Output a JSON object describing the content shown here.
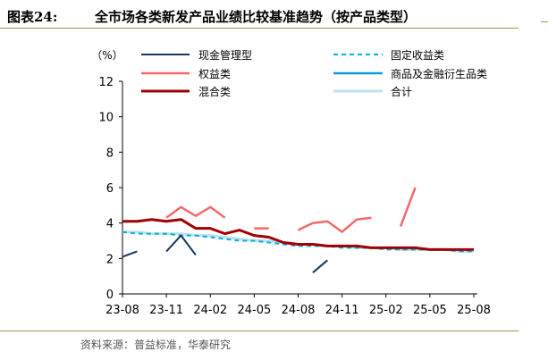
{
  "figure": {
    "number": "图表24:",
    "title": "全市场各类新发产品业绩比较基准趋势（按产品类型）",
    "source": "资料来源：普益标准，华泰研究"
  },
  "chart_data": {
    "type": "line",
    "ylabel": "（%）",
    "ylim": [
      0,
      12
    ],
    "yticks": [
      "0",
      "2",
      "4",
      "6",
      "8",
      "10",
      "12"
    ],
    "x_labels": [
      "23-08",
      "23-11",
      "24-02",
      "24-05",
      "24-08",
      "24-11",
      "25-02",
      "25-05",
      "25-08"
    ],
    "x": [
      "23-08",
      "23-09",
      "23-10",
      "23-11",
      "23-12",
      "24-01",
      "24-02",
      "24-03",
      "24-04",
      "24-05",
      "24-06",
      "24-07",
      "24-08",
      "24-09",
      "24-10",
      "24-11",
      "24-12",
      "25-01",
      "25-02",
      "25-03",
      "25-04",
      "25-05",
      "25-06",
      "25-07",
      "25-08"
    ],
    "grid": false,
    "legend_position": "top",
    "series": [
      {
        "name": "现金管理型",
        "color": "#17375e",
        "dash": "solid",
        "width": 2,
        "values": [
          2.1,
          2.4,
          null,
          2.4,
          3.3,
          2.2,
          null,
          null,
          null,
          null,
          null,
          null,
          null,
          1.2,
          1.9,
          null,
          null,
          null,
          null,
          null,
          null,
          null,
          null,
          null,
          null
        ]
      },
      {
        "name": "固定收益类",
        "color": "#00b0d8",
        "dash": "dashed",
        "width": 2,
        "values": [
          3.5,
          3.4,
          3.4,
          3.4,
          3.3,
          3.3,
          3.2,
          3.1,
          3.0,
          3.0,
          2.9,
          2.8,
          2.7,
          2.7,
          2.7,
          2.6,
          2.6,
          2.6,
          2.5,
          2.5,
          2.5,
          2.5,
          2.5,
          2.4,
          2.4
        ]
      },
      {
        "name": "权益类",
        "color": "#f4696b",
        "dash": "solid",
        "width": 2.5,
        "values": [
          null,
          null,
          null,
          4.3,
          4.9,
          4.4,
          4.9,
          4.3,
          null,
          3.7,
          3.7,
          null,
          3.6,
          4.0,
          4.1,
          3.5,
          4.2,
          4.3,
          null,
          3.8,
          6.0,
          null,
          null,
          null,
          null
        ]
      },
      {
        "name": "商品及金融衍生品类",
        "color": "#0b9fd8",
        "dash": "solid",
        "width": 2.5,
        "values": [
          null,
          null,
          null,
          null,
          null,
          null,
          null,
          null,
          null,
          null,
          null,
          null,
          null,
          null,
          null,
          null,
          null,
          null,
          null,
          null,
          null,
          null,
          null,
          null,
          null
        ]
      },
      {
        "name": "混合类",
        "color": "#a00000",
        "dash": "solid",
        "width": 3,
        "values": [
          4.1,
          4.1,
          4.2,
          4.1,
          4.2,
          3.7,
          3.7,
          3.4,
          3.6,
          3.3,
          3.2,
          2.9,
          2.8,
          2.8,
          2.7,
          2.7,
          2.7,
          2.6,
          2.6,
          2.6,
          2.6,
          2.5,
          2.5,
          2.5,
          2.5
        ]
      },
      {
        "name": "合计",
        "color": "#bfe0ee",
        "dash": "solid",
        "width": 3,
        "values": [
          3.5,
          3.5,
          3.4,
          3.4,
          3.4,
          3.3,
          3.3,
          3.2,
          3.1,
          3.0,
          3.0,
          2.9,
          2.8,
          2.8,
          2.7,
          2.7,
          2.6,
          2.6,
          2.6,
          2.5,
          2.5,
          2.5,
          2.5,
          2.4,
          2.4
        ]
      }
    ]
  }
}
